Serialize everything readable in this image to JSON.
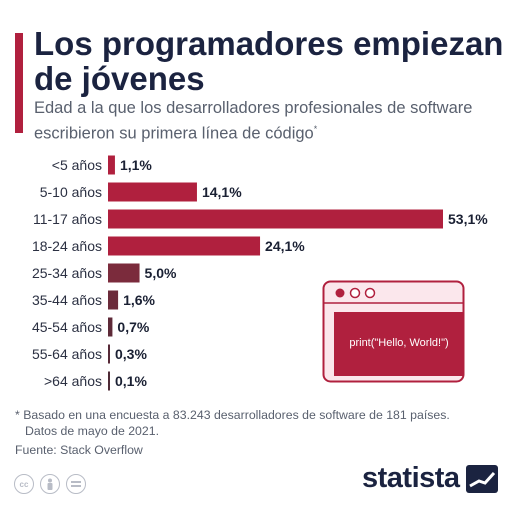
{
  "header": {
    "title": "Los programadores empiezan de jóvenes",
    "subtitle": "Edad a la que los desarrolladores profesionales de software escribieron su primera línea de código",
    "subtitle_marker": "*"
  },
  "illustration": {
    "code_text": "print(\"Hello, World!\")"
  },
  "chart_data": {
    "type": "bar",
    "orientation": "horizontal",
    "categories": [
      "<5 años",
      "5-10 años",
      "11-17 años",
      "18-24 años",
      "25-34 años",
      "35-44 años",
      "45-54 años",
      "55-64 años",
      ">64 años"
    ],
    "values": [
      1.1,
      14.1,
      53.1,
      24.1,
      5.0,
      1.6,
      0.7,
      0.3,
      0.1
    ],
    "value_labels": [
      "1,1%",
      "14,1%",
      "53,1%",
      "24,1%",
      "5,0%",
      "1,6%",
      "0,7%",
      "0,3%",
      "0,1%"
    ],
    "unit": "%",
    "xlim": [
      0,
      53.1
    ],
    "colors": [
      "#b0203e",
      "#b0203e",
      "#b0203e",
      "#b0203e",
      "#7b2b3c",
      "#6b2b3a",
      "#5e2a38",
      "#562937",
      "#4e2a36"
    ]
  },
  "footer": {
    "footnote_line1": "* Basado en una encuesta a 83.243 desarrolladores de software de 181 países.",
    "footnote_line2": "Datos de mayo de 2021.",
    "source": "Fuente: Stack Overflow",
    "brand": "statista",
    "license_icons": [
      "cc-icon",
      "attribution-icon",
      "no-derivatives-icon"
    ],
    "cc_text": "cc"
  }
}
